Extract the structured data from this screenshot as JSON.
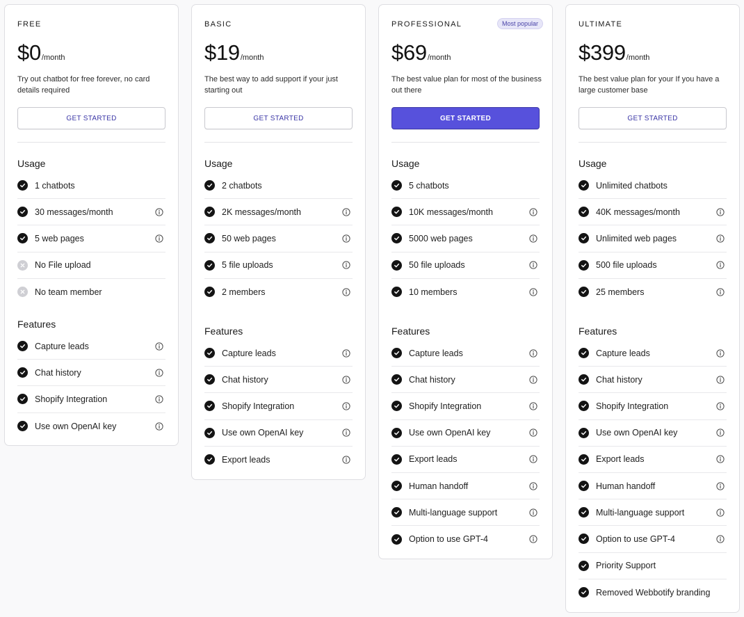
{
  "plans": [
    {
      "name": "FREE",
      "price": "$0",
      "per": "/month",
      "description": "Try out chatbot for free forever, no card details required",
      "cta": "GET STARTED",
      "usage_title": "Usage",
      "usage": [
        {
          "label": "1 chatbots",
          "included": true,
          "info": false
        },
        {
          "label": "30 messages/month",
          "included": true,
          "info": true
        },
        {
          "label": "5 web pages",
          "included": true,
          "info": true
        },
        {
          "label": "No File upload",
          "included": false,
          "info": false
        },
        {
          "label": "No team member",
          "included": false,
          "info": false
        }
      ],
      "features_title": "Features",
      "features": [
        {
          "label": "Capture leads",
          "info": true
        },
        {
          "label": "Chat history",
          "info": true
        },
        {
          "label": "Shopify Integration",
          "info": true
        },
        {
          "label": "Use own OpenAI key",
          "info": true
        }
      ]
    },
    {
      "name": "BASIC",
      "price": "$19",
      "per": "/month",
      "description": "The best way to add support if your just starting out",
      "cta": "GET STARTED",
      "usage_title": "Usage",
      "usage": [
        {
          "label": "2 chatbots",
          "included": true,
          "info": false
        },
        {
          "label": "2K messages/month",
          "included": true,
          "info": true
        },
        {
          "label": "50 web pages",
          "included": true,
          "info": true
        },
        {
          "label": "5 file uploads",
          "included": true,
          "info": true
        },
        {
          "label": "2 members",
          "included": true,
          "info": true
        }
      ],
      "features_title": "Features",
      "features": [
        {
          "label": "Capture leads",
          "info": true
        },
        {
          "label": "Chat history",
          "info": true
        },
        {
          "label": "Shopify Integration",
          "info": true
        },
        {
          "label": "Use own OpenAI key",
          "info": true
        },
        {
          "label": "Export leads",
          "info": true
        }
      ]
    },
    {
      "name": "PROFESSIONAL",
      "badge": "Most popular",
      "price": "$69",
      "per": "/month",
      "description": "The best value plan for most of the business out there",
      "cta": "GET STARTED",
      "usage_title": "Usage",
      "usage": [
        {
          "label": "5 chatbots",
          "included": true,
          "info": false
        },
        {
          "label": "10K messages/month",
          "included": true,
          "info": true
        },
        {
          "label": "5000 web pages",
          "included": true,
          "info": true
        },
        {
          "label": "50 file uploads",
          "included": true,
          "info": true
        },
        {
          "label": "10 members",
          "included": true,
          "info": true
        }
      ],
      "features_title": "Features",
      "features": [
        {
          "label": "Capture leads",
          "info": true
        },
        {
          "label": "Chat history",
          "info": true
        },
        {
          "label": "Shopify Integration",
          "info": true
        },
        {
          "label": "Use own OpenAI key",
          "info": true
        },
        {
          "label": "Export leads",
          "info": true
        },
        {
          "label": "Human handoff",
          "info": true
        },
        {
          "label": "Multi-language support",
          "info": true
        },
        {
          "label": "Option to use GPT-4",
          "info": true
        }
      ]
    },
    {
      "name": "ULTIMATE",
      "price": "$399",
      "per": "/month",
      "description": "The best value plan for your If you have a large customer base",
      "cta": "GET STARTED",
      "usage_title": "Usage",
      "usage": [
        {
          "label": "Unlimited chatbots",
          "included": true,
          "info": false
        },
        {
          "label": "40K messages/month",
          "included": true,
          "info": true
        },
        {
          "label": "Unlimited web pages",
          "included": true,
          "info": true
        },
        {
          "label": "500 file uploads",
          "included": true,
          "info": true
        },
        {
          "label": "25 members",
          "included": true,
          "info": true
        }
      ],
      "features_title": "Features",
      "features": [
        {
          "label": "Capture leads",
          "info": true
        },
        {
          "label": "Chat history",
          "info": true
        },
        {
          "label": "Shopify Integration",
          "info": true
        },
        {
          "label": "Use own OpenAI key",
          "info": true
        },
        {
          "label": "Export leads",
          "info": true
        },
        {
          "label": "Human handoff",
          "info": true
        },
        {
          "label": "Multi-language support",
          "info": true
        },
        {
          "label": "Option to use GPT-4",
          "info": true
        },
        {
          "label": "Priority Support",
          "info": false
        },
        {
          "label": "Removed Webbotify branding",
          "info": false
        }
      ]
    }
  ],
  "colors": {
    "accent": "#5751dc",
    "link": "#3b36a6",
    "badge_bg": "#e7e6f8",
    "check": "#141414",
    "excluded": "#cfcfd4"
  },
  "icons": {
    "included": "check-circle-icon",
    "excluded": "x-circle-icon",
    "info": "info-circle-icon"
  }
}
